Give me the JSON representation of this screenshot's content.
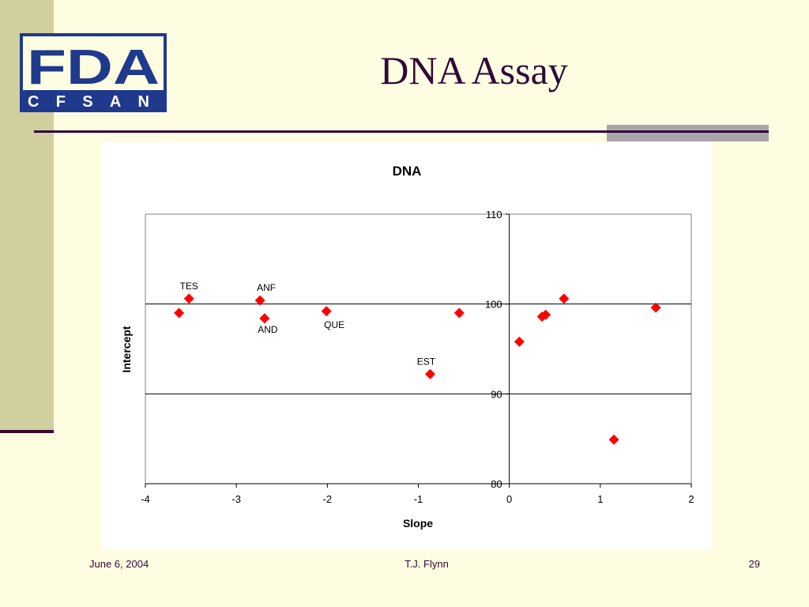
{
  "slide": {
    "title": "DNA Assay",
    "logo_text_top": "FDA",
    "logo_text_bottom": "CFSAN",
    "footer_date": "June 6, 2004",
    "footer_author": "T.J. Flynn",
    "footer_page": "29"
  },
  "colors": {
    "background": "#FFFDE1",
    "title": "#2E0A38",
    "logo_blue": "#1F3A8C",
    "marker": "#FF0000"
  },
  "chart_data": {
    "type": "scatter",
    "title": "DNA",
    "xlabel": "Slope",
    "ylabel": "Intercept",
    "xlim": [
      -4,
      2
    ],
    "ylim": [
      80,
      110
    ],
    "xticks": [
      -4,
      -3,
      -2,
      -1,
      0,
      1,
      2
    ],
    "yticks": [
      80,
      90,
      100,
      110
    ],
    "grid": "horizontal",
    "marker": "diamond",
    "points": [
      {
        "x": -3.63,
        "y": 99.0,
        "label": ""
      },
      {
        "x": -3.52,
        "y": 100.6,
        "label": "TES"
      },
      {
        "x": -2.74,
        "y": 100.4,
        "label": "ANF"
      },
      {
        "x": -2.69,
        "y": 98.4,
        "label": "AND"
      },
      {
        "x": -2.01,
        "y": 99.2,
        "label": "QUE"
      },
      {
        "x": -0.87,
        "y": 92.2,
        "label": "EST"
      },
      {
        "x": -0.55,
        "y": 99.0,
        "label": ""
      },
      {
        "x": 0.11,
        "y": 95.8,
        "label": ""
      },
      {
        "x": 0.36,
        "y": 98.6,
        "label": ""
      },
      {
        "x": 0.4,
        "y": 98.8,
        "label": ""
      },
      {
        "x": 0.6,
        "y": 100.6,
        "label": ""
      },
      {
        "x": 1.15,
        "y": 84.9,
        "label": ""
      },
      {
        "x": 1.61,
        "y": 99.6,
        "label": ""
      }
    ]
  }
}
